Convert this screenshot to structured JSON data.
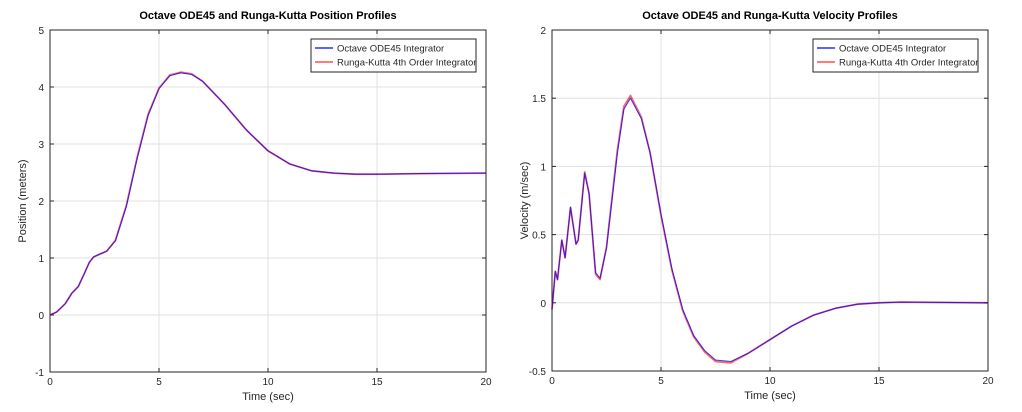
{
  "chart_data": [
    {
      "type": "line",
      "title": "Octave ODE45 and Runga-Kutta Position Profiles",
      "xlabel": "Time (sec)",
      "ylabel": "Position (meters)",
      "xlim": [
        0,
        20
      ],
      "ylim": [
        -1,
        5
      ],
      "xticks": [
        "0",
        "5",
        "10",
        "15",
        "20"
      ],
      "yticks": [
        "-1",
        "0",
        "1",
        "2",
        "3",
        "4",
        "5"
      ],
      "grid": true,
      "legend_position": "top-right",
      "series": [
        {
          "name": "Octave ODE45 Integrator",
          "color": "#0000ff",
          "x": [
            0,
            0.3,
            0.7,
            1,
            1.3,
            1.6,
            1.8,
            2,
            2.3,
            2.6,
            3,
            3.5,
            4,
            4.5,
            5,
            5.5,
            6,
            6.5,
            7,
            8,
            9,
            10,
            11,
            12,
            13,
            14,
            15,
            17,
            20
          ],
          "y": [
            0,
            0.05,
            0.2,
            0.38,
            0.5,
            0.75,
            0.92,
            1.02,
            1.07,
            1.12,
            1.3,
            1.9,
            2.75,
            3.5,
            3.97,
            4.2,
            4.25,
            4.22,
            4.1,
            3.7,
            3.25,
            2.88,
            2.65,
            2.53,
            2.49,
            2.47,
            2.47,
            2.48,
            2.49
          ]
        },
        {
          "name": "Runga-Kutta 4th Order Integrator",
          "color": "#ff0000",
          "x": [
            0,
            0.3,
            0.7,
            1,
            1.3,
            1.6,
            1.8,
            2,
            2.3,
            2.6,
            3,
            3.5,
            4,
            4.5,
            5,
            5.5,
            6,
            6.5,
            7,
            8,
            9,
            10,
            11,
            12,
            13,
            14,
            15,
            17,
            20
          ],
          "y": [
            0,
            0.05,
            0.2,
            0.38,
            0.5,
            0.75,
            0.92,
            1.02,
            1.07,
            1.12,
            1.31,
            1.92,
            2.77,
            3.52,
            3.98,
            4.21,
            4.26,
            4.23,
            4.1,
            3.7,
            3.25,
            2.88,
            2.65,
            2.53,
            2.49,
            2.47,
            2.47,
            2.48,
            2.49
          ]
        }
      ]
    },
    {
      "type": "line",
      "title": "Octave ODE45 and Runga-Kutta Velocity Profiles",
      "xlabel": "Time (sec)",
      "ylabel": "Velocity (m/sec)",
      "xlim": [
        0,
        20
      ],
      "ylim": [
        -0.5,
        2
      ],
      "xticks": [
        "0",
        "5",
        "10",
        "15",
        "20"
      ],
      "yticks": [
        "-0.5",
        "0",
        "0.5",
        "1",
        "1.5",
        "2"
      ],
      "grid": true,
      "legend_position": "top-right",
      "series": [
        {
          "name": "Octave ODE45 Integrator",
          "color": "#0000ff",
          "x": [
            0,
            0.15,
            0.25,
            0.45,
            0.6,
            0.85,
            1.1,
            1.2,
            1.5,
            1.7,
            2,
            2.2,
            2.5,
            3,
            3.3,
            3.6,
            4.1,
            4.5,
            5,
            5.5,
            6,
            6.5,
            7,
            7.5,
            8.2,
            9,
            10,
            11,
            12,
            13,
            14,
            15,
            16,
            20
          ],
          "y": [
            -0.05,
            0.23,
            0.17,
            0.46,
            0.33,
            0.7,
            0.43,
            0.46,
            0.95,
            0.8,
            0.22,
            0.18,
            0.4,
            1.1,
            1.42,
            1.5,
            1.35,
            1.1,
            0.65,
            0.25,
            -0.05,
            -0.24,
            -0.35,
            -0.42,
            -0.43,
            -0.37,
            -0.27,
            -0.17,
            -0.09,
            -0.04,
            -0.01,
            0,
            0.005,
            0
          ]
        },
        {
          "name": "Runga-Kutta 4th Order Integrator",
          "color": "#ff0000",
          "x": [
            0,
            0.15,
            0.25,
            0.45,
            0.6,
            0.85,
            1.1,
            1.2,
            1.5,
            1.7,
            2,
            2.2,
            2.5,
            3,
            3.3,
            3.6,
            4.1,
            4.5,
            5,
            5.5,
            6,
            6.5,
            7,
            7.5,
            8.2,
            9,
            10,
            11,
            12,
            13,
            14,
            15,
            16,
            20
          ],
          "y": [
            -0.05,
            0.23,
            0.17,
            0.46,
            0.33,
            0.7,
            0.43,
            0.46,
            0.96,
            0.8,
            0.21,
            0.17,
            0.41,
            1.12,
            1.44,
            1.52,
            1.36,
            1.1,
            0.64,
            0.24,
            -0.06,
            -0.25,
            -0.36,
            -0.43,
            -0.44,
            -0.37,
            -0.27,
            -0.17,
            -0.09,
            -0.04,
            -0.01,
            0,
            0.005,
            0
          ]
        }
      ]
    }
  ]
}
